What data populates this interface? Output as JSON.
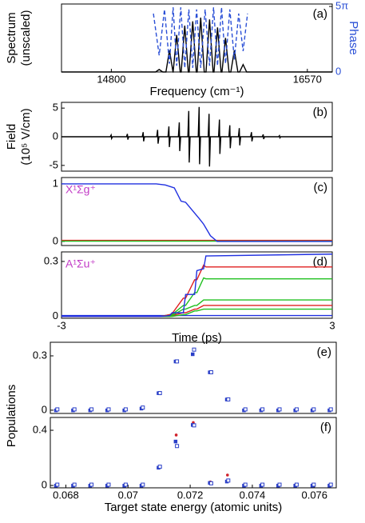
{
  "chart_data": [
    {
      "type": "line",
      "panel_label": "(a)",
      "ylabel": [
        "Spectrum",
        "(unscaled)"
      ],
      "y2label": "Phase",
      "xlabel": "Frequency (cm⁻¹)",
      "xlim": [
        14350,
        16795
      ],
      "xticks": [
        14800,
        16570
      ],
      "ylim": [
        0,
        1.1
      ],
      "y2lim": [
        0,
        16.3
      ],
      "y2ticks": [
        0,
        {
          "value": 15.708,
          "label": "5π"
        }
      ],
      "series": [
        {
          "color": "#000000",
          "x": [
            14350,
            15200,
            15232,
            15264,
            15293,
            15325,
            15357,
            15358,
            15390,
            15422,
            15431,
            15463,
            15495,
            15503,
            15535,
            15567,
            15575,
            15607,
            15639,
            15655,
            15687,
            15719,
            15727,
            15759,
            15791,
            15799,
            15831,
            15863,
            15879,
            15911,
            15943,
            15958,
            15990,
            16022,
            16795
          ],
          "values": [
            0,
            0,
            0.04,
            0,
            0,
            0.35,
            0,
            0,
            0.6,
            0,
            0,
            0.75,
            0,
            0,
            0.82,
            0,
            0,
            0.88,
            0,
            0,
            0.85,
            0,
            0,
            0.72,
            0,
            0,
            0.55,
            0,
            0,
            0.35,
            0,
            0,
            0.12,
            0,
            0
          ]
        },
        {
          "color": "#2a4fd6",
          "dash": true,
          "axis": "y2",
          "x": [
            15180,
            15232,
            15280,
            15325,
            15358,
            15390,
            15427,
            15463,
            15500,
            15535,
            15570,
            15607,
            15647,
            15687,
            15723,
            15759,
            15795,
            15831,
            15870,
            15911,
            15950,
            15990,
            16030
          ],
          "values": [
            14,
            4,
            15,
            2,
            15.5,
            1.5,
            15.5,
            1,
            15,
            1,
            15,
            1,
            15,
            1.5,
            15.5,
            1.5,
            15.5,
            2,
            15,
            3,
            14,
            5,
            14
          ]
        }
      ]
    },
    {
      "type": "line",
      "panel_label": "(b)",
      "ylabel": [
        "Field",
        "(10⁵ V/cm)"
      ],
      "xlim": [
        -3,
        3
      ],
      "ylim": [
        -6,
        6
      ],
      "yticks": [
        5,
        0,
        -5
      ],
      "series": [
        {
          "color": "#000000",
          "x": [
            -3,
            -1.92,
            -1.9,
            -1.89,
            -1.87,
            -1.56,
            -1.54,
            -1.53,
            -1.51,
            -1.21,
            -1.19,
            -1.18,
            -1.16,
            -0.89,
            -0.87,
            -0.86,
            -0.84,
            -0.64,
            -0.62,
            -0.61,
            -0.59,
            -0.41,
            -0.39,
            -0.38,
            -0.36,
            -0.2,
            -0.18,
            -0.17,
            -0.15,
            0.03,
            0.05,
            0.06,
            0.08,
            0.25,
            0.27,
            0.28,
            0.3,
            0.48,
            0.5,
            0.51,
            0.53,
            0.71,
            0.73,
            0.74,
            0.76,
            0.92,
            0.94,
            0.95,
            0.97,
            1.19,
            1.21,
            1.22,
            1.24,
            1.45,
            1.47,
            1.48,
            1.5,
            1.81,
            1.83,
            1.84,
            1.86,
            3
          ],
          "values": [
            0,
            0,
            0.3,
            -0.3,
            0,
            0,
            0.5,
            -0.5,
            0,
            0,
            0.8,
            -0.8,
            0,
            0,
            1.2,
            -1.2,
            0,
            0,
            1.8,
            -1.8,
            0,
            0,
            2.5,
            -2.5,
            0,
            0,
            4.5,
            -4.5,
            0,
            0,
            5.2,
            -4.8,
            0,
            0,
            4,
            -5.2,
            0,
            0,
            3,
            -3,
            0,
            0,
            2,
            -2,
            0,
            0,
            1.5,
            -1.5,
            0,
            0,
            0.8,
            -0.8,
            0,
            0,
            0.4,
            -0.4,
            0,
            0,
            0.2,
            -0.2,
            0,
            0
          ]
        }
      ]
    },
    {
      "type": "line",
      "panel_label": "(c)",
      "annotation": "X¹Σg⁺",
      "annotation_color": "#c23bc6",
      "xlim": [
        -3,
        3
      ],
      "ylim": [
        -0.07,
        1.11
      ],
      "yticks": [
        0,
        1
      ],
      "x": [
        -3,
        -0.9,
        -0.7,
        -0.5,
        -0.35,
        -0.25,
        0.05,
        0.15,
        0.3,
        0.45,
        3
      ],
      "series": [
        {
          "color": "#e02020",
          "values": [
            0.02,
            0.02,
            0.02,
            0.02,
            0.02,
            0.02,
            0.02,
            0.02,
            0.02,
            0.02,
            0.02
          ]
        },
        {
          "color": "#20c020",
          "values": [
            0.005,
            0.005,
            0.005,
            0.005,
            0.005,
            0.005,
            0.005,
            0.005,
            0.005,
            0.005,
            0.005
          ]
        },
        {
          "color": "#2030e0",
          "values": [
            1,
            1,
            0.98,
            0.93,
            0.7,
            0.68,
            0.4,
            0.3,
            0.1,
            0,
            0
          ]
        }
      ]
    },
    {
      "type": "line",
      "panel_label": "(d)",
      "annotation": "A¹Σu⁺",
      "annotation_color": "#c23bc6",
      "xlabel": "Time (ps)",
      "xlim": [
        -3,
        3
      ],
      "xticks": [
        -3,
        3
      ],
      "ylim": [
        -0.01,
        0.352
      ],
      "yticks": [
        0,
        0.3
      ],
      "x": [
        -3,
        -0.8,
        -0.6,
        -0.55,
        -0.3,
        -0.25,
        -0.05,
        0,
        0.15,
        0.2,
        3
      ],
      "series": [
        {
          "color": "#2030e0",
          "values": [
            0.005,
            0.005,
            0.005,
            0.005,
            0.005,
            0.005,
            0.005,
            0.005,
            0.005,
            0.005,
            0.005
          ]
        },
        {
          "color": "#20c020",
          "values": [
            0,
            0,
            0,
            0,
            0.01,
            0.01,
            0.03,
            0.03,
            0.04,
            0.04,
            0.04
          ]
        },
        {
          "color": "#e02020",
          "values": [
            0,
            0,
            0,
            0.005,
            0.02,
            0.02,
            0.04,
            0.04,
            0.06,
            0.06,
            0.06
          ]
        },
        {
          "color": "#20c020",
          "values": [
            0,
            0,
            0,
            0.005,
            0.04,
            0.04,
            0.06,
            0.06,
            0.09,
            0.09,
            0.09
          ]
        },
        {
          "color": "#20c020",
          "values": [
            0,
            0,
            0.01,
            0.01,
            0.06,
            0.06,
            0.13,
            0.13,
            0.21,
            0.205,
            0.205
          ]
        },
        {
          "color": "#e02020",
          "values": [
            0,
            0,
            0.01,
            0.015,
            0.1,
            0.1,
            0.2,
            0.2,
            0.28,
            0.27,
            0.27
          ]
        },
        {
          "color": "#2030e0",
          "values": [
            0,
            0,
            0.005,
            0.02,
            0.02,
            0.12,
            0.12,
            0.25,
            0.26,
            0.33,
            0.34
          ]
        }
      ]
    },
    {
      "type": "scatter",
      "panel_label": "(e)",
      "ylabel": [
        "Populations"
      ],
      "xlim": [
        0.0675,
        0.0767
      ],
      "ylim": [
        -0.018,
        0.375
      ],
      "yticks": [
        0,
        0.3
      ],
      "x": [
        0.0677,
        0.06825,
        0.0688,
        0.06935,
        0.0699,
        0.07045,
        0.071,
        0.07155,
        0.0721,
        0.07265,
        0.0732,
        0.07375,
        0.0743,
        0.07485,
        0.0754,
        0.07595,
        0.0765
      ],
      "series": [
        {
          "color": "#2a3fc8",
          "marker": "filled",
          "values": [
            0,
            0,
            0,
            0,
            0,
            0.01,
            0.095,
            0.27,
            0.31,
            0.21,
            0.06,
            0,
            0,
            0,
            0,
            0,
            0
          ]
        },
        {
          "color": "#2a3fc8",
          "marker": "open",
          "values": [
            0,
            0,
            0,
            0,
            0,
            0.01,
            0.09,
            0.265,
            0.33,
            0.205,
            0.055,
            0,
            0,
            0,
            0,
            0,
            0
          ]
        }
      ]
    },
    {
      "type": "scatter",
      "panel_label": "(f)",
      "xlabel": "Target state energy (atomic units)",
      "xlim": [
        0.0675,
        0.0767
      ],
      "xticks": [
        0.068,
        0.07,
        0.072,
        0.074,
        0.076
      ],
      "ylim": [
        -0.017,
        0.493
      ],
      "yticks": [
        0,
        0.4
      ],
      "x": [
        0.0677,
        0.06825,
        0.0688,
        0.06935,
        0.0699,
        0.07045,
        0.071,
        0.07155,
        0.0721,
        0.07265,
        0.0732,
        0.07375,
        0.0743,
        0.07485,
        0.0754,
        0.07595,
        0.0765
      ],
      "series": [
        {
          "color": "#d0202a",
          "marker": "dot",
          "values": [
            0,
            0,
            0,
            0,
            0,
            0,
            0.13,
            0.36,
            0.45,
            0.02,
            0.07,
            0,
            0,
            0,
            0,
            0,
            0
          ]
        },
        {
          "color": "#2a3fc8",
          "marker": "filled",
          "values": [
            0,
            0,
            0,
            0,
            0,
            0,
            0.13,
            0.32,
            0.44,
            0.02,
            0.03,
            0,
            0,
            0,
            0,
            0,
            0
          ]
        },
        {
          "color": "#2a3fc8",
          "marker": "open",
          "values": [
            0,
            0,
            0,
            0,
            0,
            0,
            0.13,
            0.28,
            0.43,
            0.01,
            0.03,
            0,
            0,
            0,
            0,
            0,
            0
          ]
        }
      ]
    }
  ]
}
